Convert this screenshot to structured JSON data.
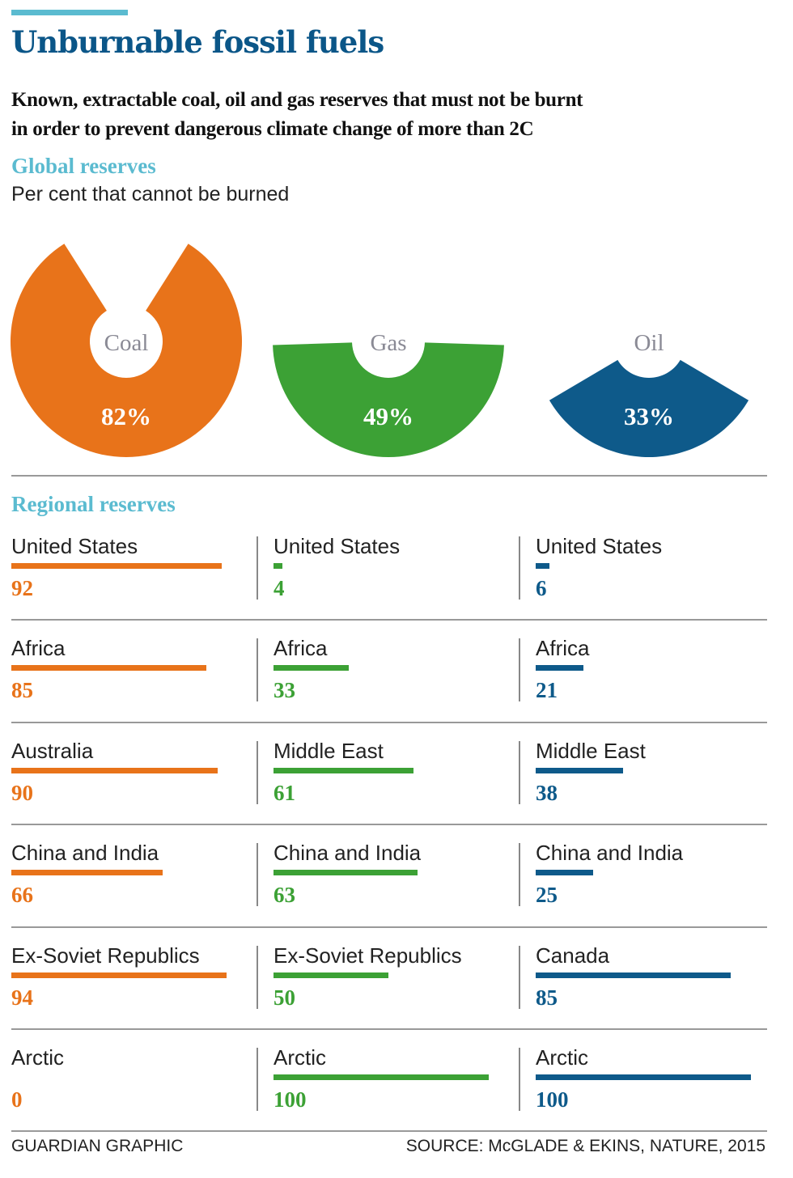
{
  "header": {
    "title": "Unburnable fossil fuels",
    "subtitle_line1": "Known, extractable coal, oil and gas reserves that must not be burnt",
    "subtitle_line2": "in order  to prevent dangerous climate change of more than 2C"
  },
  "footer": {
    "credit": "GUARDIAN GRAPHIC",
    "source": "SOURCE: McGLADE & EKINS, NATURE, 2015"
  },
  "colors": {
    "coal": "#e8731a",
    "gas": "#3ca135",
    "oil": "#0e5a8a",
    "accent": "#5bbbd0",
    "title": "#0b5688"
  },
  "chart_data": [
    {
      "type": "pie",
      "title": "Global reserves",
      "subtitle": "Per cent that cannot be burned",
      "slices": [
        {
          "name": "Coal",
          "value": 82,
          "label": "82%",
          "color": "#e8731a"
        },
        {
          "name": "Gas",
          "value": 49,
          "label": "49%",
          "color": "#3ca135"
        },
        {
          "name": "Oil",
          "value": 33,
          "label": "33%",
          "color": "#0e5a8a"
        }
      ]
    },
    {
      "type": "bar",
      "title": "Regional reserves",
      "xlim": [
        0,
        100
      ],
      "series": [
        {
          "name": "Coal",
          "color": "#e8731a",
          "items": [
            {
              "region": "United States",
              "value": 92
            },
            {
              "region": "Africa",
              "value": 85
            },
            {
              "region": "Australia",
              "value": 90
            },
            {
              "region": "China and India",
              "value": 66
            },
            {
              "region": "Ex-Soviet Republics",
              "value": 94
            },
            {
              "region": "Arctic",
              "value": 0
            }
          ]
        },
        {
          "name": "Gas",
          "color": "#3ca135",
          "items": [
            {
              "region": "United States",
              "value": 4
            },
            {
              "region": "Africa",
              "value": 33
            },
            {
              "region": "Middle East",
              "value": 61
            },
            {
              "region": "China and India",
              "value": 63
            },
            {
              "region": "Ex-Soviet Republics",
              "value": 50
            },
            {
              "region": "Arctic",
              "value": 100
            }
          ]
        },
        {
          "name": "Oil",
          "color": "#0e5a8a",
          "items": [
            {
              "region": "United States",
              "value": 6
            },
            {
              "region": "Africa",
              "value": 21
            },
            {
              "region": "Middle East",
              "value": 38
            },
            {
              "region": "China and India",
              "value": 25
            },
            {
              "region": "Canada",
              "value": 85
            },
            {
              "region": "Arctic",
              "value": 100
            }
          ]
        }
      ]
    }
  ]
}
